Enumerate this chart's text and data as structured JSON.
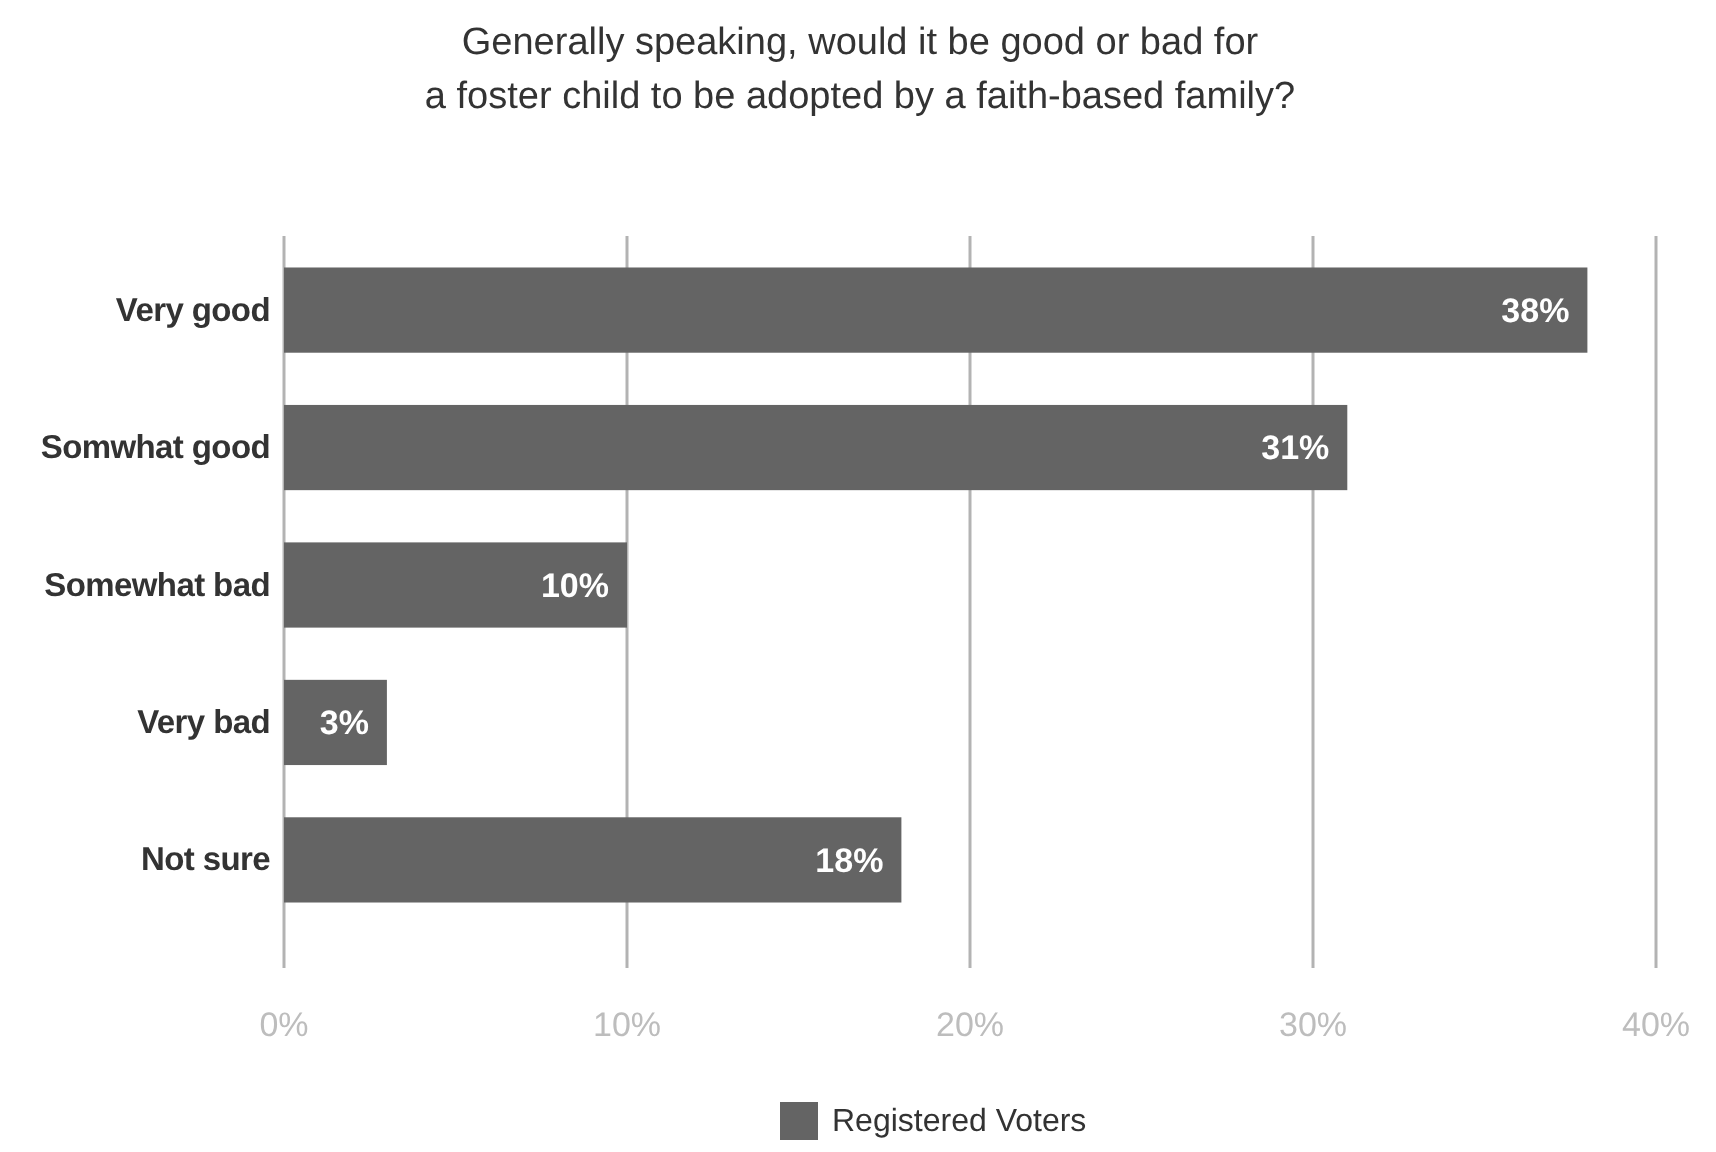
{
  "chart_data": {
    "type": "bar",
    "orientation": "horizontal",
    "title": "Generally speaking, would it be good or bad for\na foster child to be adopted by a faith-based family?",
    "categories": [
      "Very good",
      "Somwhat good",
      "Somewhat bad",
      "Very bad",
      "Not sure"
    ],
    "series": [
      {
        "name": "Registered Voters",
        "color": "#646464",
        "values": [
          38,
          31,
          10,
          3,
          18
        ]
      }
    ],
    "value_labels": [
      "38%",
      "31%",
      "10%",
      "3%",
      "18%"
    ],
    "xlim": [
      0,
      40
    ],
    "xticks": [
      {
        "value": 0,
        "label": "0%"
      },
      {
        "value": 10,
        "label": "10%"
      },
      {
        "value": 20,
        "label": "20%"
      },
      {
        "value": 30,
        "label": "30%"
      },
      {
        "value": 40,
        "label": "40%"
      }
    ],
    "grid": "x",
    "legend": "bottom"
  }
}
